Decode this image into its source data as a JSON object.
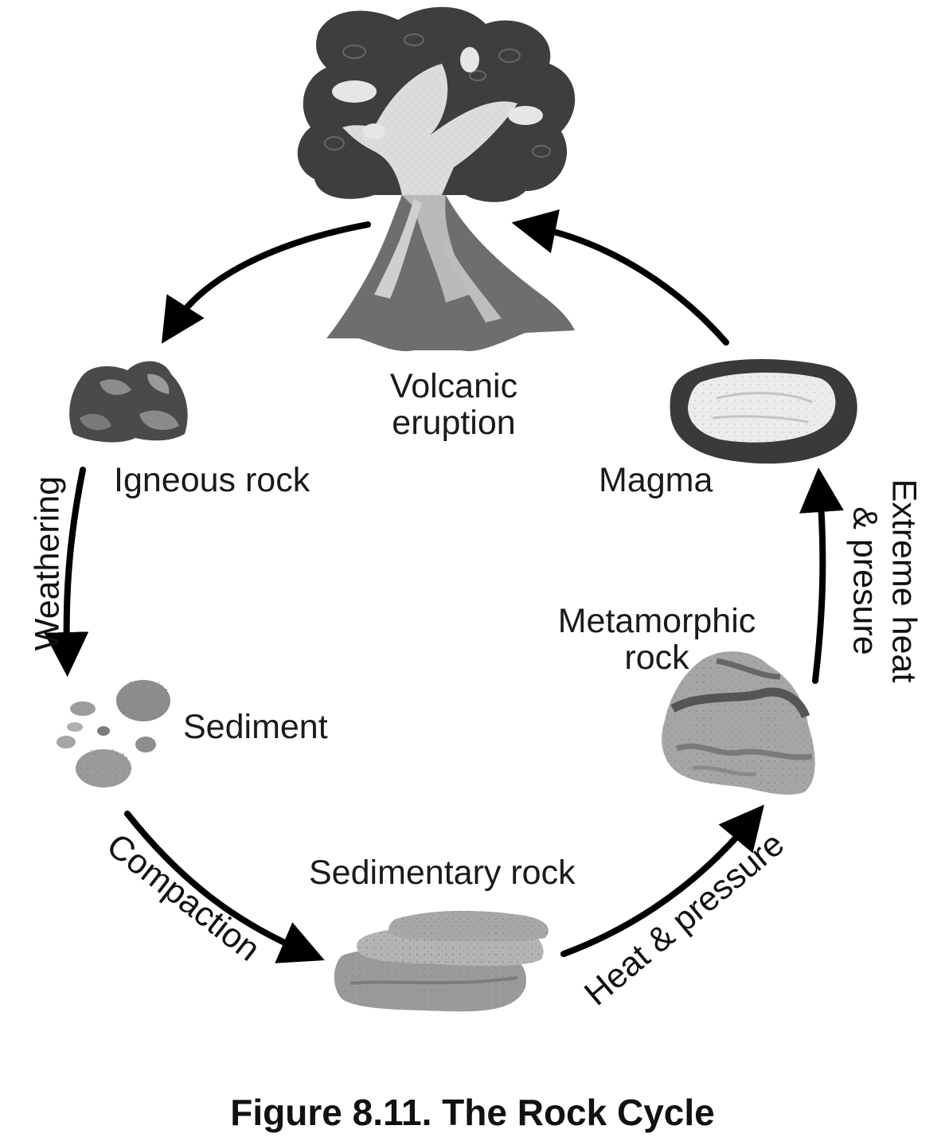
{
  "labels": {
    "volcanic_eruption_1": "Volcanic",
    "volcanic_eruption_2": "eruption",
    "igneous_rock": "Igneous rock",
    "magma": "Magma",
    "metamorphic_rock_1": "Metamorphic",
    "metamorphic_rock_2": "rock",
    "sediment": "Sediment",
    "sedimentary_rock": "Sedimentary rock"
  },
  "processes": {
    "weathering": "Weathering",
    "compaction": "Compaction",
    "heat_pressure": "Heat & pressure",
    "extreme_heat_1": "Extreme heat",
    "extreme_heat_2": "& presure"
  },
  "caption": "Figure 8.11. The Rock Cycle"
}
